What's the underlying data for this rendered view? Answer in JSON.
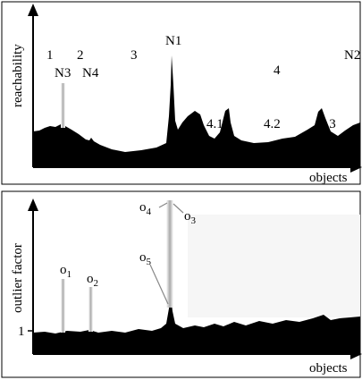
{
  "top_plot": {
    "y_axis_label": "reachability",
    "x_axis_label": "objects",
    "cluster_labels": [
      "1",
      "2",
      "3",
      "4",
      "4.1",
      "4.2",
      "4.3"
    ],
    "point_labels": [
      "N1",
      "N2",
      "N3",
      "N4"
    ]
  },
  "bottom_plot": {
    "y_axis_label": "outlier factor",
    "x_axis_label": "objects",
    "y_tick": "1",
    "object_labels": [
      {
        "base": "o",
        "sub": "1"
      },
      {
        "base": "o",
        "sub": "2"
      },
      {
        "base": "o",
        "sub": "3"
      },
      {
        "base": "o",
        "sub": "4"
      },
      {
        "base": "o",
        "sub": "5"
      }
    ]
  }
}
